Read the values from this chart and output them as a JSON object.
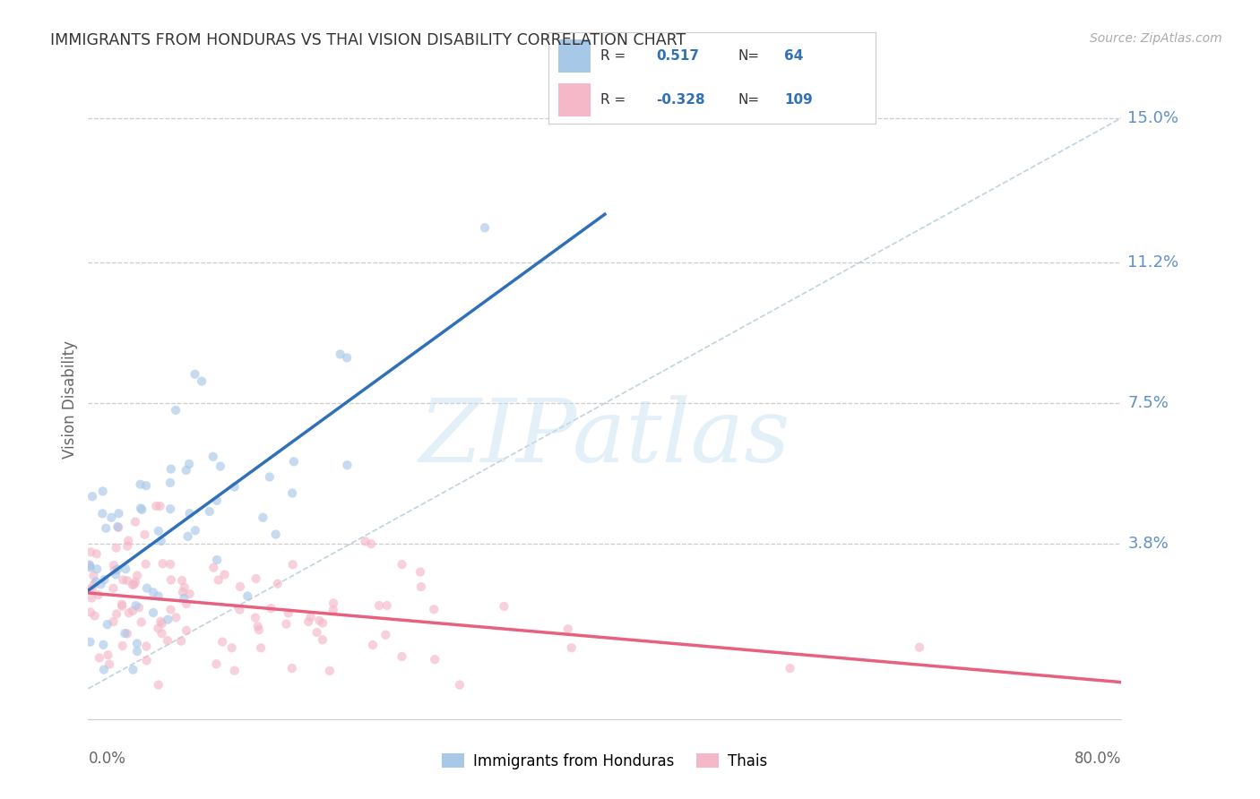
{
  "title": "IMMIGRANTS FROM HONDURAS VS THAI VISION DISABILITY CORRELATION CHART",
  "source": "Source: ZipAtlas.com",
  "ylabel": "Vision Disability",
  "xlim": [
    0.0,
    0.8
  ],
  "ylim": [
    -0.008,
    0.16
  ],
  "blue_R": "0.517",
  "blue_N": "64",
  "pink_R": "-0.328",
  "pink_N": "109",
  "blue_color": "#a8c8e8",
  "pink_color": "#f4b8c8",
  "blue_line_color": "#3070b8",
  "pink_line_color": "#e86080",
  "scatter_alpha": 0.65,
  "scatter_size": 55,
  "background_color": "#ffffff",
  "grid_color": "#cccccc",
  "right_label_color": "#6090c8",
  "title_color": "#333333",
  "source_color": "#aaaaaa",
  "ytick_vals": [
    0.0,
    0.038,
    0.075,
    0.112,
    0.15
  ],
  "ytick_labels": [
    "",
    "3.8%",
    "7.5%",
    "11.2%",
    "15.0%"
  ]
}
